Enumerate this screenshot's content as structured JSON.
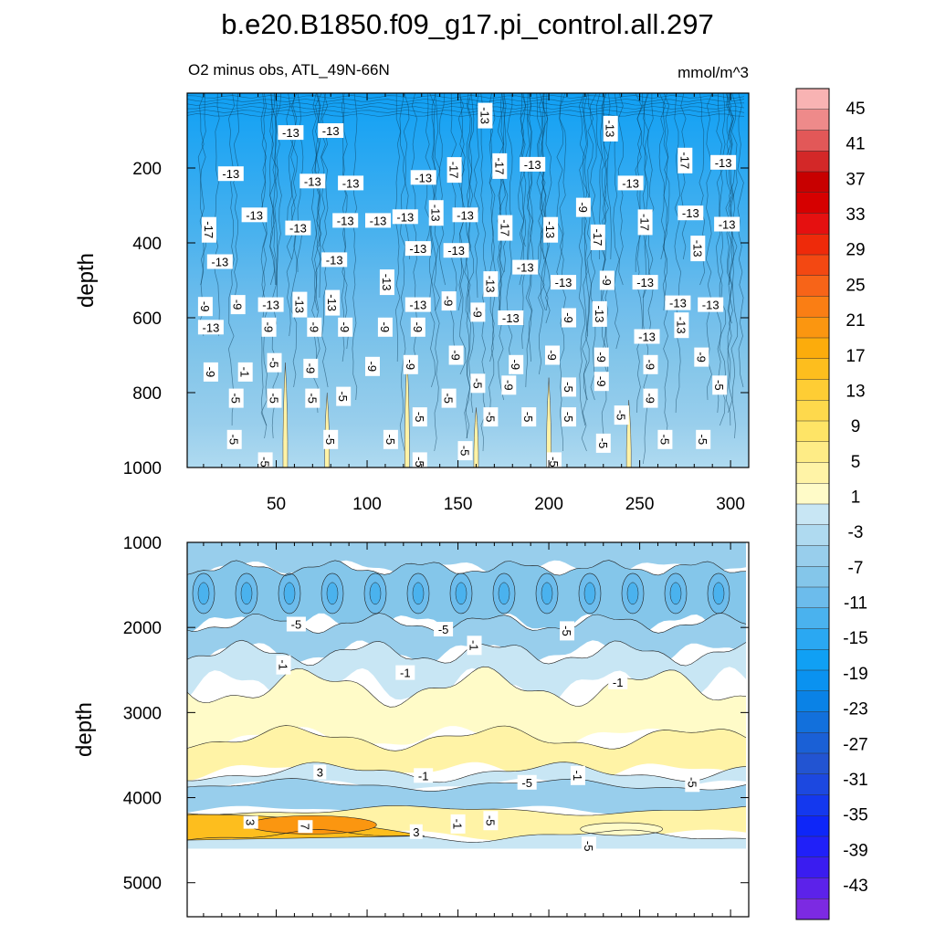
{
  "chart_data": {
    "type": "contour",
    "title": "b.e20.B1850.f09_g17.pi_control.all.297",
    "subtitle_left": "O2 minus obs, ATL_49N-66N",
    "units": "mmol/m^3",
    "xlabel": "",
    "ylabel": "depth",
    "xlim": [
      1,
      310
    ],
    "x_ticks": [
      50,
      100,
      150,
      200,
      250,
      300
    ],
    "panels": [
      {
        "name": "upper",
        "ylim": [
          0,
          1000
        ],
        "y_ticks": [
          200,
          400,
          600,
          800,
          1000
        ],
        "ylabel": "depth",
        "contour_labels": [
          {
            "x": 58,
            "depth": 105,
            "value": "-13"
          },
          {
            "x": 80,
            "depth": 100,
            "value": "-13"
          },
          {
            "x": 165,
            "depth": 60,
            "value": "-13"
          },
          {
            "x": 234,
            "depth": 95,
            "value": "-13"
          },
          {
            "x": 275,
            "depth": 180,
            "value": "-17"
          },
          {
            "x": 296,
            "depth": 185,
            "value": "-13"
          },
          {
            "x": 25,
            "depth": 215,
            "value": "-13"
          },
          {
            "x": 70,
            "depth": 235,
            "value": "-13"
          },
          {
            "x": 91,
            "depth": 240,
            "value": "-13"
          },
          {
            "x": 131,
            "depth": 225,
            "value": "-13"
          },
          {
            "x": 148,
            "depth": 205,
            "value": "-17"
          },
          {
            "x": 173,
            "depth": 195,
            "value": "-17"
          },
          {
            "x": 191,
            "depth": 190,
            "value": "-13"
          },
          {
            "x": 245,
            "depth": 240,
            "value": "-13"
          },
          {
            "x": 38,
            "depth": 325,
            "value": "-13"
          },
          {
            "x": 13,
            "depth": 365,
            "value": "-17"
          },
          {
            "x": 62,
            "depth": 360,
            "value": "-13"
          },
          {
            "x": 88,
            "depth": 340,
            "value": "-13"
          },
          {
            "x": 106,
            "depth": 340,
            "value": "-13"
          },
          {
            "x": 121,
            "depth": 330,
            "value": "-13"
          },
          {
            "x": 138,
            "depth": 320,
            "value": "-13"
          },
          {
            "x": 154,
            "depth": 325,
            "value": "-13"
          },
          {
            "x": 176,
            "depth": 360,
            "value": "-17"
          },
          {
            "x": 201,
            "depth": 365,
            "value": "-13"
          },
          {
            "x": 219,
            "depth": 305,
            "value": "-9"
          },
          {
            "x": 227,
            "depth": 385,
            "value": "-17"
          },
          {
            "x": 253,
            "depth": 345,
            "value": "-17"
          },
          {
            "x": 278,
            "depth": 320,
            "value": "-13"
          },
          {
            "x": 298,
            "depth": 350,
            "value": "-13"
          },
          {
            "x": 19,
            "depth": 450,
            "value": "-13"
          },
          {
            "x": 82,
            "depth": 445,
            "value": "-13"
          },
          {
            "x": 128,
            "depth": 415,
            "value": "-13"
          },
          {
            "x": 149,
            "depth": 420,
            "value": "-13"
          },
          {
            "x": 187,
            "depth": 465,
            "value": "-13"
          },
          {
            "x": 282,
            "depth": 415,
            "value": "-13"
          },
          {
            "x": 11,
            "depth": 570,
            "value": "-9"
          },
          {
            "x": 29,
            "depth": 565,
            "value": "-9"
          },
          {
            "x": 47,
            "depth": 565,
            "value": "-13"
          },
          {
            "x": 63,
            "depth": 565,
            "value": "-13"
          },
          {
            "x": 81,
            "depth": 560,
            "value": "-13"
          },
          {
            "x": 111,
            "depth": 505,
            "value": "-13"
          },
          {
            "x": 128,
            "depth": 565,
            "value": "-13"
          },
          {
            "x": 145,
            "depth": 555,
            "value": "-9"
          },
          {
            "x": 168,
            "depth": 510,
            "value": "-13"
          },
          {
            "x": 161,
            "depth": 585,
            "value": "-9"
          },
          {
            "x": 179,
            "depth": 600,
            "value": "-13"
          },
          {
            "x": 208,
            "depth": 505,
            "value": "-13"
          },
          {
            "x": 232,
            "depth": 500,
            "value": "-9"
          },
          {
            "x": 253,
            "depth": 505,
            "value": "-13"
          },
          {
            "x": 271,
            "depth": 560,
            "value": "-13"
          },
          {
            "x": 289,
            "depth": 565,
            "value": "-13"
          },
          {
            "x": 46,
            "depth": 625,
            "value": "-9"
          },
          {
            "x": 71,
            "depth": 625,
            "value": "-9"
          },
          {
            "x": 88,
            "depth": 625,
            "value": "-9"
          },
          {
            "x": 110,
            "depth": 625,
            "value": "-9"
          },
          {
            "x": 128,
            "depth": 625,
            "value": "-9"
          },
          {
            "x": 211,
            "depth": 600,
            "value": "-9"
          },
          {
            "x": 228,
            "depth": 590,
            "value": "-13"
          },
          {
            "x": 254,
            "depth": 650,
            "value": "-13"
          },
          {
            "x": 273,
            "depth": 620,
            "value": "-13"
          },
          {
            "x": 14,
            "depth": 625,
            "value": "-13"
          },
          {
            "x": 14,
            "depth": 745,
            "value": "-9"
          },
          {
            "x": 33,
            "depth": 745,
            "value": "-1"
          },
          {
            "x": 49,
            "depth": 720,
            "value": "-5"
          },
          {
            "x": 69,
            "depth": 735,
            "value": "-9"
          },
          {
            "x": 103,
            "depth": 730,
            "value": "-9"
          },
          {
            "x": 124,
            "depth": 725,
            "value": "-9"
          },
          {
            "x": 149,
            "depth": 700,
            "value": "-9"
          },
          {
            "x": 182,
            "depth": 725,
            "value": "-9"
          },
          {
            "x": 202,
            "depth": 700,
            "value": "-9"
          },
          {
            "x": 229,
            "depth": 705,
            "value": "-9"
          },
          {
            "x": 256,
            "depth": 725,
            "value": "-9"
          },
          {
            "x": 284,
            "depth": 705,
            "value": "-9"
          },
          {
            "x": 229,
            "depth": 770,
            "value": "-9"
          },
          {
            "x": 28,
            "depth": 815,
            "value": "-5"
          },
          {
            "x": 49,
            "depth": 815,
            "value": "-5"
          },
          {
            "x": 70,
            "depth": 815,
            "value": "-5"
          },
          {
            "x": 87,
            "depth": 810,
            "value": "-5"
          },
          {
            "x": 145,
            "depth": 815,
            "value": "-5"
          },
          {
            "x": 161,
            "depth": 775,
            "value": "-5"
          },
          {
            "x": 178,
            "depth": 780,
            "value": "-9"
          },
          {
            "x": 211,
            "depth": 785,
            "value": "-5"
          },
          {
            "x": 256,
            "depth": 815,
            "value": "-9"
          },
          {
            "x": 294,
            "depth": 780,
            "value": "-5"
          },
          {
            "x": 129,
            "depth": 865,
            "value": "-5"
          },
          {
            "x": 168,
            "depth": 865,
            "value": "-5"
          },
          {
            "x": 189,
            "depth": 865,
            "value": "-5"
          },
          {
            "x": 211,
            "depth": 865,
            "value": "-5"
          },
          {
            "x": 240,
            "depth": 860,
            "value": "-5"
          },
          {
            "x": 27,
            "depth": 925,
            "value": "-5"
          },
          {
            "x": 80,
            "depth": 925,
            "value": "-5"
          },
          {
            "x": 113,
            "depth": 925,
            "value": "-5"
          },
          {
            "x": 230,
            "depth": 935,
            "value": "-5"
          },
          {
            "x": 264,
            "depth": 925,
            "value": "-5"
          },
          {
            "x": 285,
            "depth": 925,
            "value": "-5"
          },
          {
            "x": 44,
            "depth": 985,
            "value": "-5"
          },
          {
            "x": 129,
            "depth": 985,
            "value": "-5"
          },
          {
            "x": 154,
            "depth": 955,
            "value": "-5"
          },
          {
            "x": 203,
            "depth": 985,
            "value": "-5"
          }
        ]
      },
      {
        "name": "lower",
        "ylim": [
          1000,
          5400
        ],
        "y_ticks": [
          1000,
          2000,
          3000,
          4000,
          5000
        ],
        "ylabel": "depth",
        "data_max_depth": 4600,
        "contour_labels": [
          {
            "x": 61,
            "depth": 1960,
            "value": "-5"
          },
          {
            "x": 142,
            "depth": 2020,
            "value": "-5"
          },
          {
            "x": 210,
            "depth": 2040,
            "value": "-5"
          },
          {
            "x": 54,
            "depth": 2440,
            "value": "-1"
          },
          {
            "x": 121,
            "depth": 2530,
            "value": "-1"
          },
          {
            "x": 159,
            "depth": 2210,
            "value": "-1"
          },
          {
            "x": 238,
            "depth": 2640,
            "value": "-1"
          },
          {
            "x": 74,
            "depth": 3700,
            "value": "3"
          },
          {
            "x": 131,
            "depth": 3740,
            "value": "-1"
          },
          {
            "x": 188,
            "depth": 3820,
            "value": "-5"
          },
          {
            "x": 216,
            "depth": 3740,
            "value": "-1"
          },
          {
            "x": 279,
            "depth": 3820,
            "value": "-5"
          },
          {
            "x": 36,
            "depth": 4290,
            "value": "3"
          },
          {
            "x": 66,
            "depth": 4340,
            "value": "7"
          },
          {
            "x": 127,
            "depth": 4400,
            "value": "3"
          },
          {
            "x": 150,
            "depth": 4310,
            "value": "-1"
          },
          {
            "x": 168,
            "depth": 4270,
            "value": "-5"
          },
          {
            "x": 222,
            "depth": 4570,
            "value": "-5"
          }
        ]
      }
    ],
    "colorbar": {
      "labels": [
        "45",
        "41",
        "37",
        "33",
        "29",
        "25",
        "21",
        "17",
        "13",
        "9",
        "5",
        "1",
        "-3",
        "-7",
        "-11",
        "-15",
        "-19",
        "-23",
        "-27",
        "-31",
        "-35",
        "-39",
        "-43"
      ],
      "colors": [
        "#f8b3b3",
        "#ee8a8a",
        "#e25858",
        "#d32828",
        "#c80000",
        "#d60000",
        "#e51010",
        "#ee2a0a",
        "#f34812",
        "#f76418",
        "#fa7e14",
        "#fb9610",
        "#fcac0c",
        "#fdbe1e",
        "#fecd34",
        "#fed94c",
        "#fee466",
        "#feec86",
        "#fff3a6",
        "#fffbc8",
        "#c8e6f4",
        "#afdaf0",
        "#98ceec",
        "#84c6ea",
        "#6cbcec",
        "#4ab2ee",
        "#2aa8f2",
        "#10a0f4",
        "#0a92f0",
        "#0a82e6",
        "#1270dc",
        "#1a60d6",
        "#2254d2",
        "#1c48e0",
        "#1438ee",
        "#0e26f8",
        "#2020f8",
        "#3a1cf0",
        "#5c22ea",
        "#7c2ae2"
      ]
    }
  }
}
